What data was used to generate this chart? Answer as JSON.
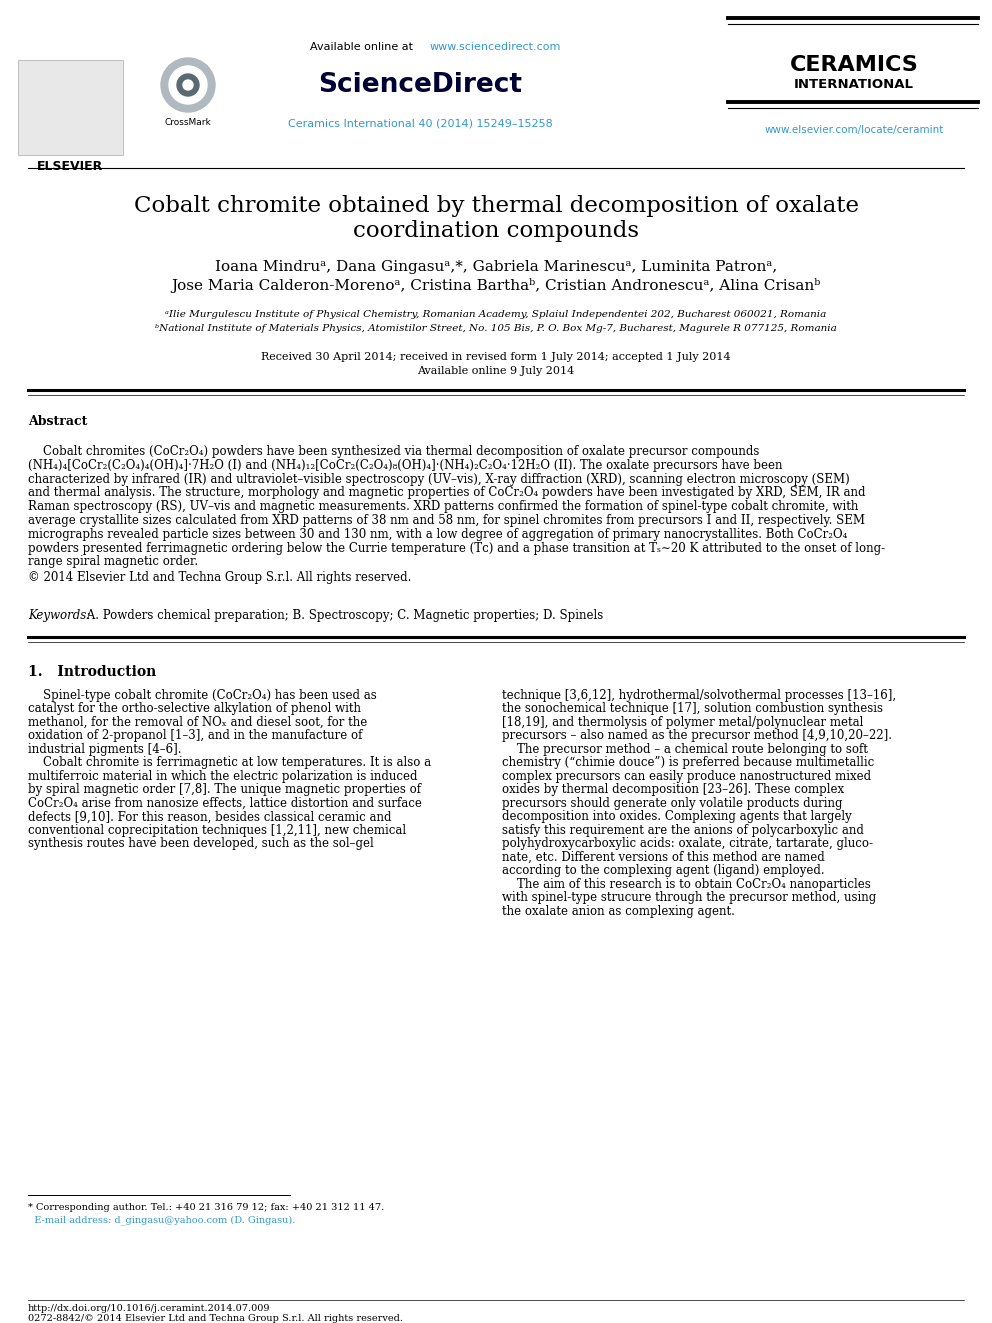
{
  "bg_color": "#ffffff",
  "header": {
    "available_online_text": "Available online at ",
    "available_online_url": "www.sciencedirect.com",
    "sciencedirect_text": "ScienceDirect",
    "journal_text": "Ceramics International 40 (2014) 15249–15258",
    "ceramics_line1": "CERAMICS",
    "ceramics_line2": "INTERNATIONAL",
    "elsevier_text": "ELSEVIER",
    "website_url": "www.elsevier.com/locate/ceramint"
  },
  "title_line1": "Cobalt chromite obtained by thermal decomposition of oxalate",
  "title_line2": "coordination compounds",
  "author_line1": "Ioana Mindruᵃ, Dana Gingasuᵃ,*, Gabriela Marinescuᵃ, Luminita Patronᵃ,",
  "author_line2": "Jose Maria Calderon-Morenoᵃ, Cristina Barthaᵇ, Cristian Andronescuᵃ, Alina Crisanᵇ",
  "affiliation_a": "ᵃIlie Murgulescu Institute of Physical Chemistry, Romanian Academy, Splaiul Independentei 202, Bucharest 060021, Romania",
  "affiliation_b": "ᵇNational Institute of Materials Physics, Atomistilor Street, No. 105 Bis, P. O. Box Mg-7, Bucharest, Magurele R 077125, Romania",
  "received_line1": "Received 30 April 2014; received in revised form 1 July 2014; accepted 1 July 2014",
  "received_line2": "Available online 9 July 2014",
  "abstract_title": "Abstract",
  "abstract_lines": [
    "    Cobalt chromites (CoCr₂O₄) powders have been synthesized via thermal decomposition of oxalate precursor compounds",
    "(NH₄)₄[CoCr₂(C₂O₄)₄(OH)₄]·7H₂O (I) and (NH₄)₁₂[CoCr₂(C₂O₄)₈(OH)₄]·(NH₄)₂C₂O₄·12H₂O (II). The oxalate precursors have been",
    "characterized by infrared (IR) and ultraviolet–visible spectroscopy (UV–vis), X-ray diffraction (XRD), scanning electron microscopy (SEM)",
    "and thermal analysis. The structure, morphology and magnetic properties of CoCr₂O₄ powders have been investigated by XRD, SEM, IR and",
    "Raman spectroscopy (RS), UV–vis and magnetic measurements. XRD patterns confirmed the formation of spinel-type cobalt chromite, with",
    "average crystallite sizes calculated from XRD patterns of 38 nm and 58 nm, for spinel chromites from precursors I and II, respectively. SEM",
    "micrographs revealed particle sizes between 30 and 130 nm, with a low degree of aggregation of primary nanocrystallites. Both CoCr₂O₄",
    "powders presented ferrimagnetic ordering below the Currie temperature (Tᴄ) and a phase transition at Tₛ∼20 K attributed to the onset of long-",
    "range spiral magnetic order."
  ],
  "copyright_text": "© 2014 Elsevier Ltd and Techna Group S.r.l. All rights reserved.",
  "keywords_italic": "Keywords:",
  "keywords_normal": " A. Powders chemical preparation; B. Spectroscopy; C. Magnetic properties; D. Spinels",
  "intro_title": "1.   Introduction",
  "intro_col1": [
    "    Spinel-type cobalt chromite (CoCr₂O₄) has been used as",
    "catalyst for the ortho-selective alkylation of phenol with",
    "methanol, for the removal of NOₓ and diesel soot, for the",
    "oxidation of 2-propanol [1–3], and in the manufacture of",
    "industrial pigments [4–6].",
    "    Cobalt chromite is ferrimagnetic at low temperatures. It is also a",
    "multiferroic material in which the electric polarization is induced",
    "by spiral magnetic order [7,8]. The unique magnetic properties of",
    "CoCr₂O₄ arise from nanosize effects, lattice distortion and surface",
    "defects [9,10]. For this reason, besides classical ceramic and",
    "conventional coprecipitation techniques [1,2,11], new chemical",
    "synthesis routes have been developed, such as the sol–gel"
  ],
  "intro_col2": [
    "technique [3,6,12], hydrothermal/solvothermal processes [13–16],",
    "the sonochemical technique [17], solution combustion synthesis",
    "[18,19], and thermolysis of polymer metal/polynuclear metal",
    "precursors – also named as the precursor method [4,9,10,20–22].",
    "    The precursor method – a chemical route belonging to soft",
    "chemistry (“chimie douce”) is preferred because multimetallic",
    "complex precursors can easily produce nanostructured mixed",
    "oxides by thermal decomposition [23–26]. These complex",
    "precursors should generate only volatile products during",
    "decomposition into oxides. Complexing agents that largely",
    "satisfy this requirement are the anions of polycarboxylic and",
    "polyhydroxycarboxylic acids: oxalate, citrate, tartarate, gluco-",
    "nate, etc. Different versions of this method are named",
    "according to the complexing agent (ligand) employed.",
    "    The aim of this research is to obtain CoCr₂O₄ nanoparticles",
    "with spinel-type strucure through the precursor method, using",
    "the oxalate anion as complexing agent."
  ],
  "footnote_star": "* Corresponding author. Tel.: +40 21 316 79 12; fax: +40 21 312 11 47.",
  "footnote_email": "  E-mail address: d_gingasu@yahoo.com (D. Gingasu).",
  "footer_doi": "http://dx.doi.org/10.1016/j.ceramint.2014.07.009",
  "footer_issn": "0272-8842/© 2014 Elsevier Ltd and Techna Group S.r.l. All rights reserved.",
  "link_color": "#3399cc",
  "text_color": "#000000"
}
